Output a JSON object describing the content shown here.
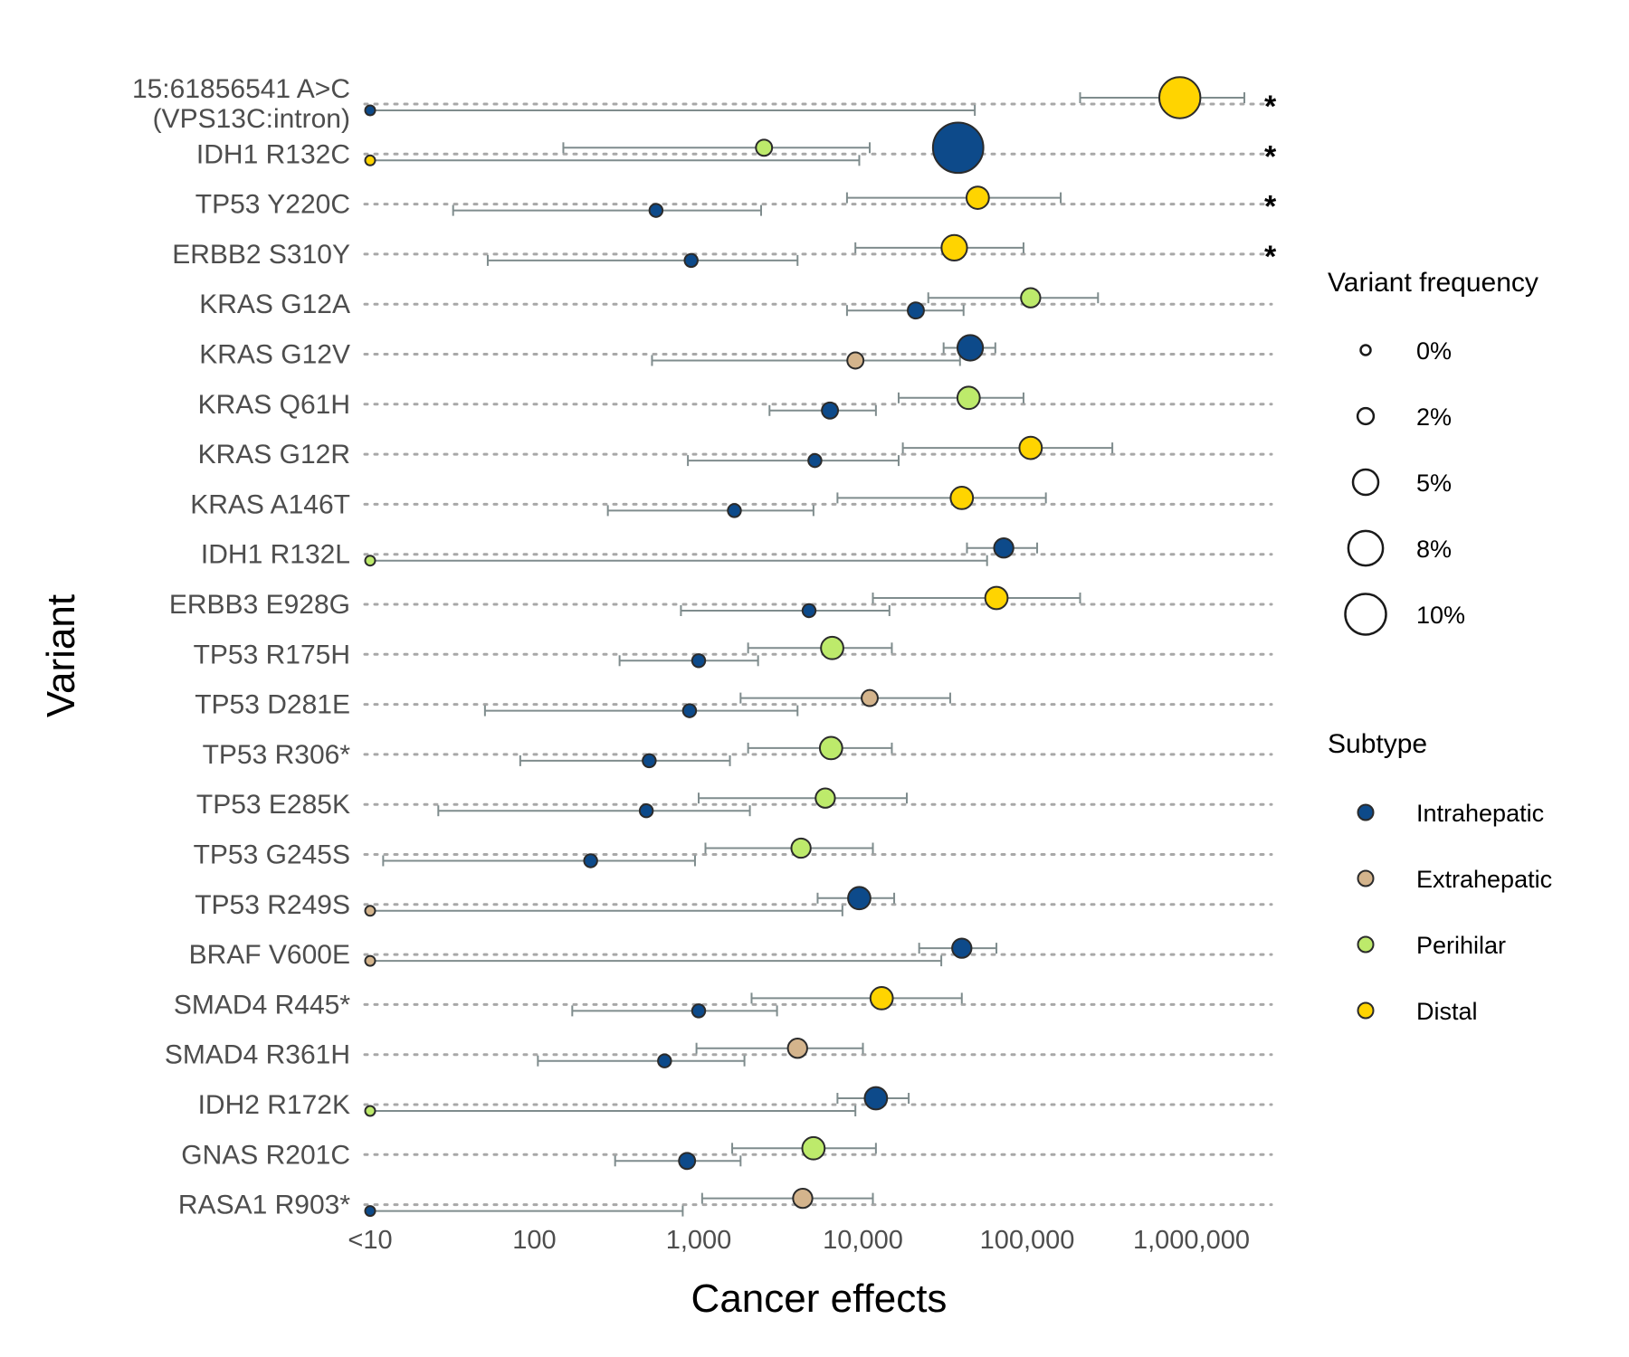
{
  "chart_data": {
    "type": "scatter",
    "xlabel": "Cancer effects",
    "ylabel": "Variant",
    "x_scale": "log10",
    "x_ticks": [
      {
        "value": 10,
        "label": "<10"
      },
      {
        "value": 100,
        "label": "100"
      },
      {
        "value": 1000,
        "label": "1,000"
      },
      {
        "value": 10000,
        "label": "10,000"
      },
      {
        "value": 100000,
        "label": "100,000"
      },
      {
        "value": 1000000,
        "label": "1,000,000"
      }
    ],
    "xlim": [
      10,
      3500000
    ],
    "grid": "dotted horizontal lines per variant",
    "legend_position": "right",
    "size_legend": {
      "title": "Variant frequency",
      "entries": [
        {
          "label": "0%",
          "value": 0
        },
        {
          "label": "2%",
          "value": 2
        },
        {
          "label": "5%",
          "value": 5
        },
        {
          "label": "8%",
          "value": 8
        },
        {
          "label": "10%",
          "value": 10
        }
      ]
    },
    "color_legend": {
      "title": "Subtype",
      "entries": [
        {
          "label": "Intrahepatic",
          "color": "#0d4a8a"
        },
        {
          "label": "Extrahepatic",
          "color": "#d4b48c"
        },
        {
          "label": "Perihilar",
          "color": "#bdea6b"
        },
        {
          "label": "Distal",
          "color": "#ffd400"
        }
      ]
    },
    "significance_marker": "*",
    "variants": [
      {
        "label": [
          "15:61856541 A>C",
          "(VPS13C:intron)"
        ],
        "significant": true,
        "points": [
          {
            "subtype": "Distal",
            "effect": 850000,
            "lo": 210000,
            "hi": 2100000,
            "freq": 10
          },
          {
            "subtype": "Intrahepatic",
            "effect": 10,
            "lo": 10,
            "hi": 48000,
            "freq": 0
          }
        ]
      },
      {
        "label": [
          "IDH1 R132C"
        ],
        "significant": true,
        "points": [
          {
            "subtype": "Intrahepatic",
            "effect": 38000,
            "lo": null,
            "hi": null,
            "freq": 13
          },
          {
            "subtype": "Perihilar",
            "effect": 2500,
            "lo": 150,
            "hi": 11000,
            "freq": 2
          },
          {
            "subtype": "Distal",
            "effect": 10,
            "lo": 10,
            "hi": 9500,
            "freq": 0
          }
        ]
      },
      {
        "label": [
          "TP53 Y220C"
        ],
        "significant": true,
        "points": [
          {
            "subtype": "Distal",
            "effect": 50000,
            "lo": 8000,
            "hi": 160000,
            "freq": 4
          },
          {
            "subtype": "Intrahepatic",
            "effect": 550,
            "lo": 32,
            "hi": 2400,
            "freq": 1
          }
        ]
      },
      {
        "label": [
          "ERBB2 S310Y"
        ],
        "significant": true,
        "points": [
          {
            "subtype": "Distal",
            "effect": 36000,
            "lo": 9000,
            "hi": 95000,
            "freq": 5
          },
          {
            "subtype": "Intrahepatic",
            "effect": 900,
            "lo": 52,
            "hi": 4000,
            "freq": 1
          }
        ]
      },
      {
        "label": [
          "KRAS G12A"
        ],
        "significant": false,
        "points": [
          {
            "subtype": "Perihilar",
            "effect": 105000,
            "lo": 25000,
            "hi": 270000,
            "freq": 3
          },
          {
            "subtype": "Intrahepatic",
            "effect": 21000,
            "lo": 8000,
            "hi": 41000,
            "freq": 2
          }
        ]
      },
      {
        "label": [
          "KRAS G12V"
        ],
        "significant": false,
        "points": [
          {
            "subtype": "Intrahepatic",
            "effect": 45000,
            "lo": 31000,
            "hi": 64000,
            "freq": 5
          },
          {
            "subtype": "Extrahepatic",
            "effect": 9000,
            "lo": 520,
            "hi": 39000,
            "freq": 2
          }
        ]
      },
      {
        "label": [
          "KRAS Q61H"
        ],
        "significant": false,
        "points": [
          {
            "subtype": "Perihilar",
            "effect": 44000,
            "lo": 16500,
            "hi": 95000,
            "freq": 4
          },
          {
            "subtype": "Intrahepatic",
            "effect": 6300,
            "lo": 2700,
            "hi": 12000,
            "freq": 2
          }
        ]
      },
      {
        "label": [
          "KRAS G12R"
        ],
        "significant": false,
        "points": [
          {
            "subtype": "Distal",
            "effect": 105000,
            "lo": 17500,
            "hi": 330000,
            "freq": 4
          },
          {
            "subtype": "Intrahepatic",
            "effect": 5100,
            "lo": 860,
            "hi": 16500,
            "freq": 1
          }
        ]
      },
      {
        "label": [
          "KRAS A146T"
        ],
        "significant": false,
        "points": [
          {
            "subtype": "Distal",
            "effect": 40000,
            "lo": 7000,
            "hi": 130000,
            "freq": 4
          },
          {
            "subtype": "Intrahepatic",
            "effect": 1650,
            "lo": 280,
            "hi": 5000,
            "freq": 1
          }
        ]
      },
      {
        "label": [
          "IDH1 R132L"
        ],
        "significant": false,
        "points": [
          {
            "subtype": "Intrahepatic",
            "effect": 72000,
            "lo": 43000,
            "hi": 115000,
            "freq": 3
          },
          {
            "subtype": "Perihilar",
            "effect": 10,
            "lo": 10,
            "hi": 57000,
            "freq": 0
          }
        ]
      },
      {
        "label": [
          "ERBB3 E928G"
        ],
        "significant": false,
        "points": [
          {
            "subtype": "Distal",
            "effect": 65000,
            "lo": 11500,
            "hi": 210000,
            "freq": 4
          },
          {
            "subtype": "Intrahepatic",
            "effect": 4700,
            "lo": 780,
            "hi": 14500,
            "freq": 1
          }
        ]
      },
      {
        "label": [
          "TP53 R175H"
        ],
        "significant": false,
        "points": [
          {
            "subtype": "Perihilar",
            "effect": 6500,
            "lo": 2000,
            "hi": 15000,
            "freq": 4
          },
          {
            "subtype": "Intrahepatic",
            "effect": 1000,
            "lo": 330,
            "hi": 2300,
            "freq": 1
          }
        ]
      },
      {
        "label": [
          "TP53 D281E"
        ],
        "significant": false,
        "points": [
          {
            "subtype": "Extrahepatic",
            "effect": 11000,
            "lo": 1800,
            "hi": 34000,
            "freq": 2
          },
          {
            "subtype": "Intrahepatic",
            "effect": 880,
            "lo": 50,
            "hi": 4000,
            "freq": 1
          }
        ]
      },
      {
        "label": [
          "TP53 R306*"
        ],
        "significant": false,
        "points": [
          {
            "subtype": "Perihilar",
            "effect": 6400,
            "lo": 2000,
            "hi": 15000,
            "freq": 4
          },
          {
            "subtype": "Intrahepatic",
            "effect": 500,
            "lo": 82,
            "hi": 1550,
            "freq": 1
          }
        ]
      },
      {
        "label": [
          "TP53 E285K"
        ],
        "significant": false,
        "points": [
          {
            "subtype": "Perihilar",
            "effect": 5900,
            "lo": 1000,
            "hi": 18500,
            "freq": 3
          },
          {
            "subtype": "Intrahepatic",
            "effect": 480,
            "lo": 26,
            "hi": 2050,
            "freq": 1
          }
        ]
      },
      {
        "label": [
          "TP53 G245S"
        ],
        "significant": false,
        "points": [
          {
            "subtype": "Perihilar",
            "effect": 4200,
            "lo": 1100,
            "hi": 11500,
            "freq": 3
          },
          {
            "subtype": "Intrahepatic",
            "effect": 220,
            "lo": 12,
            "hi": 950,
            "freq": 1
          }
        ]
      },
      {
        "label": [
          "TP53 R249S"
        ],
        "significant": false,
        "points": [
          {
            "subtype": "Intrahepatic",
            "effect": 9500,
            "lo": 5300,
            "hi": 15500,
            "freq": 4
          },
          {
            "subtype": "Extrahepatic",
            "effect": 10,
            "lo": 10,
            "hi": 7500,
            "freq": 0
          }
        ]
      },
      {
        "label": [
          "BRAF V600E"
        ],
        "significant": false,
        "points": [
          {
            "subtype": "Intrahepatic",
            "effect": 40000,
            "lo": 22000,
            "hi": 65000,
            "freq": 3
          },
          {
            "subtype": "Extrahepatic",
            "effect": 10,
            "lo": 10,
            "hi": 30000,
            "freq": 0
          }
        ]
      },
      {
        "label": [
          "SMAD4 R445*"
        ],
        "significant": false,
        "points": [
          {
            "subtype": "Distal",
            "effect": 13000,
            "lo": 2100,
            "hi": 40000,
            "freq": 4
          },
          {
            "subtype": "Intrahepatic",
            "effect": 1000,
            "lo": 170,
            "hi": 3000,
            "freq": 1
          }
        ]
      },
      {
        "label": [
          "SMAD4 R361H"
        ],
        "significant": false,
        "points": [
          {
            "subtype": "Extrahepatic",
            "effect": 4000,
            "lo": 970,
            "hi": 10000,
            "freq": 3
          },
          {
            "subtype": "Intrahepatic",
            "effect": 620,
            "lo": 105,
            "hi": 1900,
            "freq": 1
          }
        ]
      },
      {
        "label": [
          "IDH2 R172K"
        ],
        "significant": false,
        "points": [
          {
            "subtype": "Intrahepatic",
            "effect": 12000,
            "lo": 7000,
            "hi": 19000,
            "freq": 4
          },
          {
            "subtype": "Perihilar",
            "effect": 10,
            "lo": 10,
            "hi": 9000,
            "freq": 0
          }
        ]
      },
      {
        "label": [
          "GNAS R201C"
        ],
        "significant": false,
        "points": [
          {
            "subtype": "Perihilar",
            "effect": 5000,
            "lo": 1600,
            "hi": 12000,
            "freq": 4
          },
          {
            "subtype": "Intrahepatic",
            "effect": 850,
            "lo": 310,
            "hi": 1800,
            "freq": 2
          }
        ]
      },
      {
        "label": [
          "RASA1 R903*"
        ],
        "significant": false,
        "points": [
          {
            "subtype": "Extrahepatic",
            "effect": 4300,
            "lo": 1050,
            "hi": 11500,
            "freq": 3
          },
          {
            "subtype": "Intrahepatic",
            "effect": 10,
            "lo": 10,
            "hi": 800,
            "freq": 0
          }
        ]
      }
    ]
  }
}
